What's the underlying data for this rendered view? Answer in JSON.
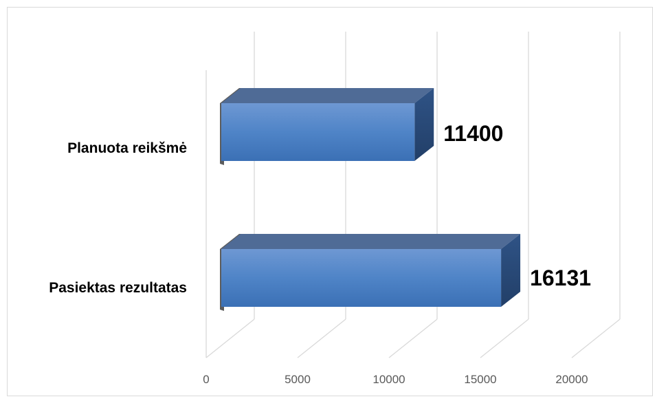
{
  "chart_data": {
    "type": "bar",
    "orientation": "horizontal",
    "style": "3d",
    "title": "",
    "xlabel": "",
    "ylabel": "",
    "categories": [
      "Planuota reikšmė",
      "Pasiektas rezultatas"
    ],
    "values": [
      11400,
      16131
    ],
    "xlim": [
      0,
      20000
    ],
    "x_ticks": [
      "0",
      "5000",
      "10000",
      "15000",
      "20000"
    ],
    "data_labels": [
      "11400",
      "16131"
    ],
    "grid": true,
    "legend": "none",
    "colors": {
      "bar_front": "#4a7ebb",
      "bar_top": "#4f6b96",
      "bar_side": "#2e4f7c",
      "grid": "#d9d9d9"
    }
  }
}
